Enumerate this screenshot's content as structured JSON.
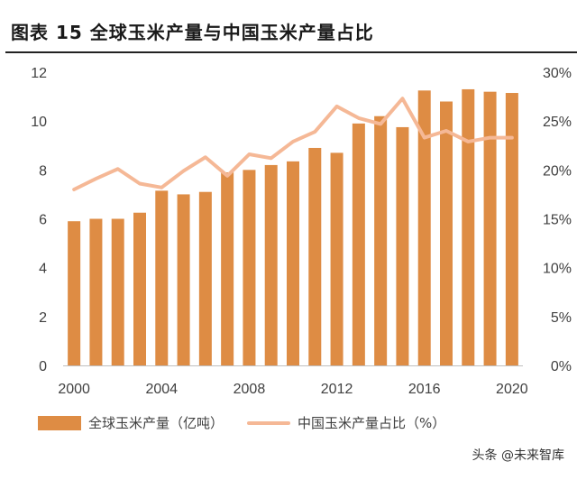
{
  "figure": {
    "title": "图表 15  全球玉米产量与中国玉米产量占比"
  },
  "chart_data": {
    "type": "bar+line",
    "x": [
      2000,
      2001,
      2002,
      2003,
      2004,
      2005,
      2006,
      2007,
      2008,
      2009,
      2010,
      2011,
      2012,
      2013,
      2014,
      2015,
      2016,
      2017,
      2018,
      2019,
      2020
    ],
    "series": [
      {
        "name": "全球玉米产量（亿吨）",
        "type": "bar",
        "axis": "left",
        "color": "#DE8C44",
        "values": [
          5.9,
          6.0,
          6.0,
          6.25,
          7.15,
          7.0,
          7.1,
          7.9,
          8.0,
          8.2,
          8.35,
          8.9,
          8.7,
          9.9,
          10.2,
          9.75,
          11.25,
          10.8,
          11.3,
          11.2,
          11.15
        ]
      },
      {
        "name": "中国玉米产量占比（%）",
        "type": "line",
        "axis": "right",
        "color": "#F5B896",
        "values": [
          18.0,
          19.1,
          20.1,
          18.6,
          18.2,
          19.9,
          21.3,
          19.4,
          21.6,
          21.2,
          22.9,
          23.9,
          26.5,
          25.3,
          24.7,
          27.3,
          23.3,
          24.0,
          22.9,
          23.3,
          23.3
        ]
      }
    ],
    "y_left": {
      "min": 0,
      "max": 12,
      "ticks": [
        "0",
        "2",
        "4",
        "6",
        "8",
        "10",
        "12"
      ]
    },
    "y_right": {
      "min": 0,
      "max": 30,
      "ticks": [
        "0%",
        "5%",
        "10%",
        "15%",
        "20%",
        "25%",
        "30%"
      ]
    },
    "x_ticks": [
      "2000",
      "2004",
      "2008",
      "2012",
      "2016",
      "2020"
    ],
    "legend": [
      "全球玉米产量（亿吨）",
      "中国玉米产量占比（%）"
    ],
    "legend_position": "bottom",
    "grid": false
  },
  "watermark": "头条 @未来智库"
}
